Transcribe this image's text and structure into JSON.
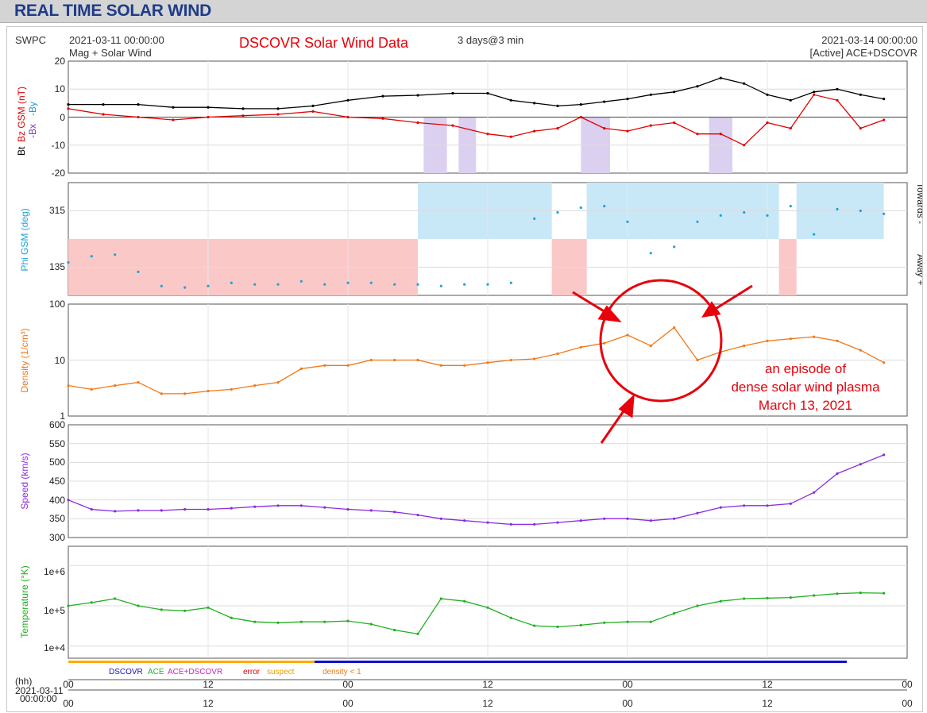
{
  "page_title": "REAL TIME SOLAR WIND",
  "header": {
    "org": "SWPC",
    "start_time": "2021-03-11 00:00:00",
    "subtitle_left": "Mag + Solar Wind",
    "title": "DSCOVR Solar Wind Data",
    "span": "3 days@3 min",
    "end_time": "2021-03-14 00:00:00",
    "subtitle_right": "[Active] ACE+DSCOVR"
  },
  "annotation": {
    "line1": "an episode of",
    "line2": "dense solar wind plasma",
    "line3": "March 13, 2021"
  },
  "legend": {
    "dscovr": "DSCOVR",
    "ace": "ACE",
    "ace_dscovr": "ACE+DSCOVR",
    "error": "error",
    "suspect": "suspect",
    "density": "density < 1"
  },
  "xaxis": {
    "unit": "(hh)",
    "date": "2021-03-11",
    "time": "00:00:00",
    "ticks": [
      "00",
      "12",
      "00",
      "12",
      "00",
      "12",
      "00"
    ]
  },
  "colors": {
    "bt": "#000000",
    "bz": "#e00000",
    "by": "#1e9be0",
    "bx": "#7a3cc8",
    "phi": "#1fa3d8",
    "toward_fill": "#c8e8f8",
    "away_fill": "#fbc8c8",
    "bz_neg_fill": "#dcd0f0",
    "density": "#f07818",
    "speed": "#8a2be2",
    "temperature": "#22b022"
  },
  "chart_data": [
    {
      "type": "line",
      "panel": "magnetic field",
      "ylabel_bt": "Bt",
      "ylabel_bz": "Bz GSM (nT)",
      "ylabel_bx": "-Bx",
      "ylabel_by": "-By",
      "ylim": [
        -20,
        20
      ],
      "yticks": [
        "20",
        "10",
        "0",
        "-10",
        "-20"
      ],
      "xunit": "hours since 2021-03-11 00:00",
      "series": [
        {
          "name": "Bt",
          "x": [
            0,
            3,
            6,
            9,
            12,
            15,
            18,
            21,
            24,
            27,
            30,
            33,
            36,
            38,
            40,
            42,
            44,
            46,
            48,
            50,
            52,
            54,
            56,
            58,
            60,
            62,
            64,
            66,
            68,
            70
          ],
          "values": [
            4.5,
            4.5,
            4.5,
            3.5,
            3.5,
            3,
            3,
            4,
            6,
            7.5,
            7.8,
            8.5,
            8.5,
            6,
            5,
            4,
            4.5,
            5.5,
            6.5,
            8,
            9,
            11,
            14,
            12,
            8,
            6,
            9,
            10,
            8,
            6.5
          ]
        },
        {
          "name": "Bz GSM",
          "x": [
            0,
            3,
            6,
            9,
            12,
            15,
            18,
            21,
            24,
            27,
            30,
            33,
            36,
            38,
            40,
            42,
            44,
            46,
            48,
            50,
            52,
            54,
            56,
            58,
            60,
            62,
            64,
            66,
            68,
            70
          ],
          "values": [
            3,
            1,
            0,
            -1,
            0,
            0.5,
            1,
            2,
            0,
            -0.5,
            -2,
            -3,
            -6,
            -7,
            -5,
            -4,
            0,
            -4,
            -5,
            -3,
            -2,
            -6,
            -6,
            -10,
            -2,
            -4,
            8,
            6,
            -4,
            -1
          ]
        }
      ]
    },
    {
      "type": "scatter",
      "panel": "phi",
      "ylabel": "Phi GSM (deg)",
      "right_labels": [
        "Towards -",
        "Away +"
      ],
      "ylim": [
        45,
        405
      ],
      "yticks": [
        "315",
        "135"
      ],
      "x": [
        0,
        2,
        4,
        6,
        8,
        10,
        12,
        14,
        16,
        18,
        20,
        22,
        24,
        26,
        28,
        30,
        32,
        34,
        36,
        38,
        40,
        42,
        44,
        46,
        48,
        50,
        52,
        54,
        56,
        58,
        60,
        62,
        64,
        66,
        68,
        70
      ],
      "values": [
        150,
        170,
        175,
        120,
        75,
        70,
        75,
        85,
        80,
        80,
        90,
        80,
        85,
        85,
        80,
        80,
        75,
        80,
        80,
        85,
        290,
        310,
        325,
        330,
        280,
        180,
        200,
        280,
        300,
        310,
        300,
        330,
        240,
        320,
        315,
        305
      ]
    },
    {
      "type": "line",
      "panel": "density",
      "ylabel": "Density (1/cm³)",
      "log_scale": true,
      "ylim": [
        1,
        100
      ],
      "yticks": [
        "100",
        "10",
        "1"
      ],
      "x": [
        0,
        2,
        4,
        6,
        8,
        10,
        12,
        14,
        16,
        18,
        20,
        22,
        24,
        26,
        28,
        30,
        32,
        34,
        36,
        38,
        40,
        42,
        44,
        46,
        48,
        50,
        52,
        54,
        56,
        58,
        60,
        62,
        64,
        66,
        68,
        70
      ],
      "values": [
        3.5,
        3,
        3.5,
        4,
        2.5,
        2.5,
        2.8,
        3,
        3.5,
        4,
        7,
        8,
        8,
        10,
        10,
        10,
        8,
        8,
        9,
        10,
        10.5,
        13,
        17,
        20,
        28,
        18,
        38,
        10,
        14,
        18,
        22,
        24,
        26,
        22,
        15,
        9
      ]
    },
    {
      "type": "scatter",
      "panel": "speed",
      "ylabel": "Speed (km/s)",
      "ylim": [
        300,
        600
      ],
      "yticks": [
        "600",
        "550",
        "500",
        "450",
        "400",
        "350",
        "300"
      ],
      "x": [
        0,
        2,
        4,
        6,
        8,
        10,
        12,
        14,
        16,
        18,
        20,
        22,
        24,
        26,
        28,
        30,
        32,
        34,
        36,
        38,
        40,
        42,
        44,
        46,
        48,
        50,
        52,
        54,
        56,
        58,
        60,
        62,
        64,
        66,
        68,
        70
      ],
      "values": [
        400,
        375,
        370,
        372,
        372,
        375,
        375,
        378,
        382,
        385,
        385,
        380,
        375,
        372,
        368,
        360,
        350,
        345,
        340,
        335,
        335,
        340,
        345,
        350,
        350,
        345,
        350,
        365,
        380,
        385,
        385,
        390,
        420,
        470,
        495,
        520
      ]
    },
    {
      "type": "line",
      "panel": "temperature",
      "ylabel": "Temperature (°K)",
      "log_scale": true,
      "ylim": [
        5000,
        3000000
      ],
      "yticks": [
        "1e+6",
        "1e+5",
        "1e+4"
      ],
      "x": [
        0,
        2,
        4,
        6,
        8,
        10,
        12,
        14,
        16,
        18,
        20,
        22,
        24,
        26,
        28,
        30,
        32,
        34,
        36,
        38,
        40,
        42,
        44,
        46,
        48,
        50,
        52,
        54,
        56,
        58,
        60,
        62,
        64,
        66,
        68,
        70
      ],
      "values": [
        100000,
        120000,
        150000,
        100000,
        80000,
        75000,
        90000,
        50000,
        40000,
        38000,
        40000,
        40000,
        42000,
        35000,
        25000,
        20000,
        150000,
        130000,
        90000,
        50000,
        32000,
        30000,
        33000,
        38000,
        40000,
        40000,
        65000,
        100000,
        130000,
        150000,
        155000,
        160000,
        180000,
        200000,
        210000,
        205000
      ]
    }
  ]
}
